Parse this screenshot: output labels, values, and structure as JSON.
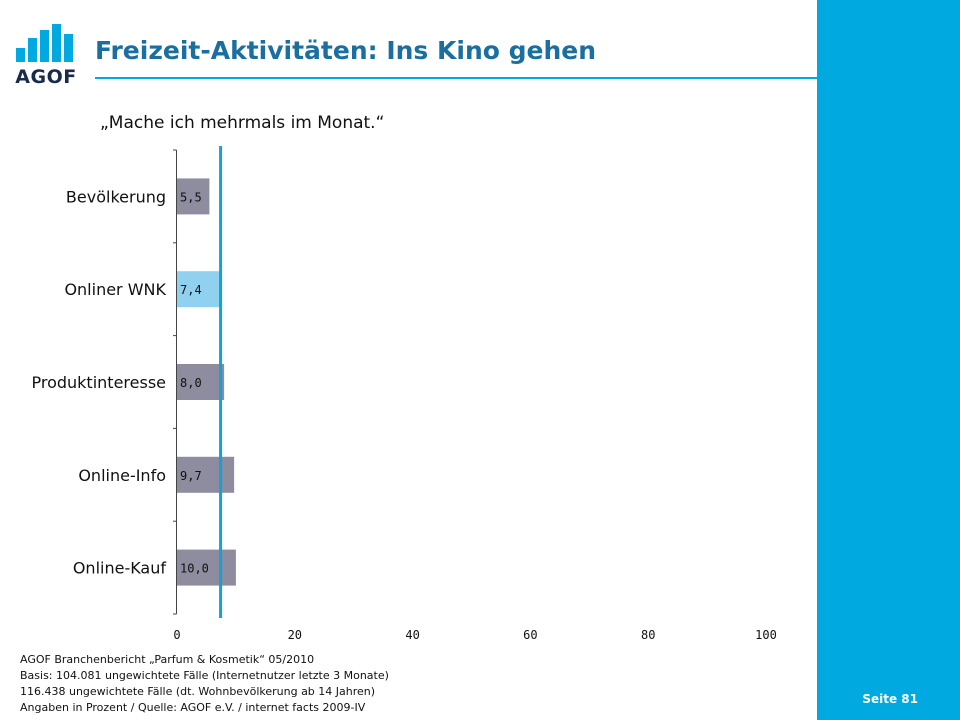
{
  "brand": {
    "logo_text": "AGOF",
    "accent_color": "#00a9e0",
    "logo_color": "#1a2a4a"
  },
  "header": {
    "title": "Freizeit-Aktivitäten: Ins Kino gehen"
  },
  "page": {
    "number_label": "Seite 81"
  },
  "chart_data": {
    "type": "bar",
    "orientation": "horizontal",
    "title": "„Mache ich mehrmals im Monat.“",
    "categories": [
      "Bevölkerung",
      "Onliner WNK",
      "Produktinteresse",
      "Online-Info",
      "Online-Kauf"
    ],
    "values": [
      5.5,
      7.4,
      8.0,
      9.7,
      10.0
    ],
    "value_labels": [
      "5,5",
      "7,4",
      "8,0",
      "9,7",
      "10,0"
    ],
    "bar_colors": [
      "#8e8d9f",
      "#8fd1ee",
      "#8e8d9f",
      "#8e8d9f",
      "#8e8d9f"
    ],
    "reference_line": {
      "value": 7.4,
      "color": "#1a9fd0"
    },
    "xlim": [
      0,
      100
    ],
    "xticks": [
      0,
      20,
      40,
      60,
      80,
      100
    ],
    "grid": false,
    "legend": "none"
  },
  "footer": {
    "lines": [
      "AGOF Branchenbericht „Parfum & Kosmetik“ 05/2010",
      "Basis: 104.081 ungewichtete Fälle (Internetnutzer letzte 3 Monate)",
      "116.438 ungewichtete Fälle (dt. Wohnbevölkerung ab 14 Jahren)",
      "Angaben in Prozent / Quelle: AGOF e.V. / internet facts 2009-IV"
    ]
  }
}
